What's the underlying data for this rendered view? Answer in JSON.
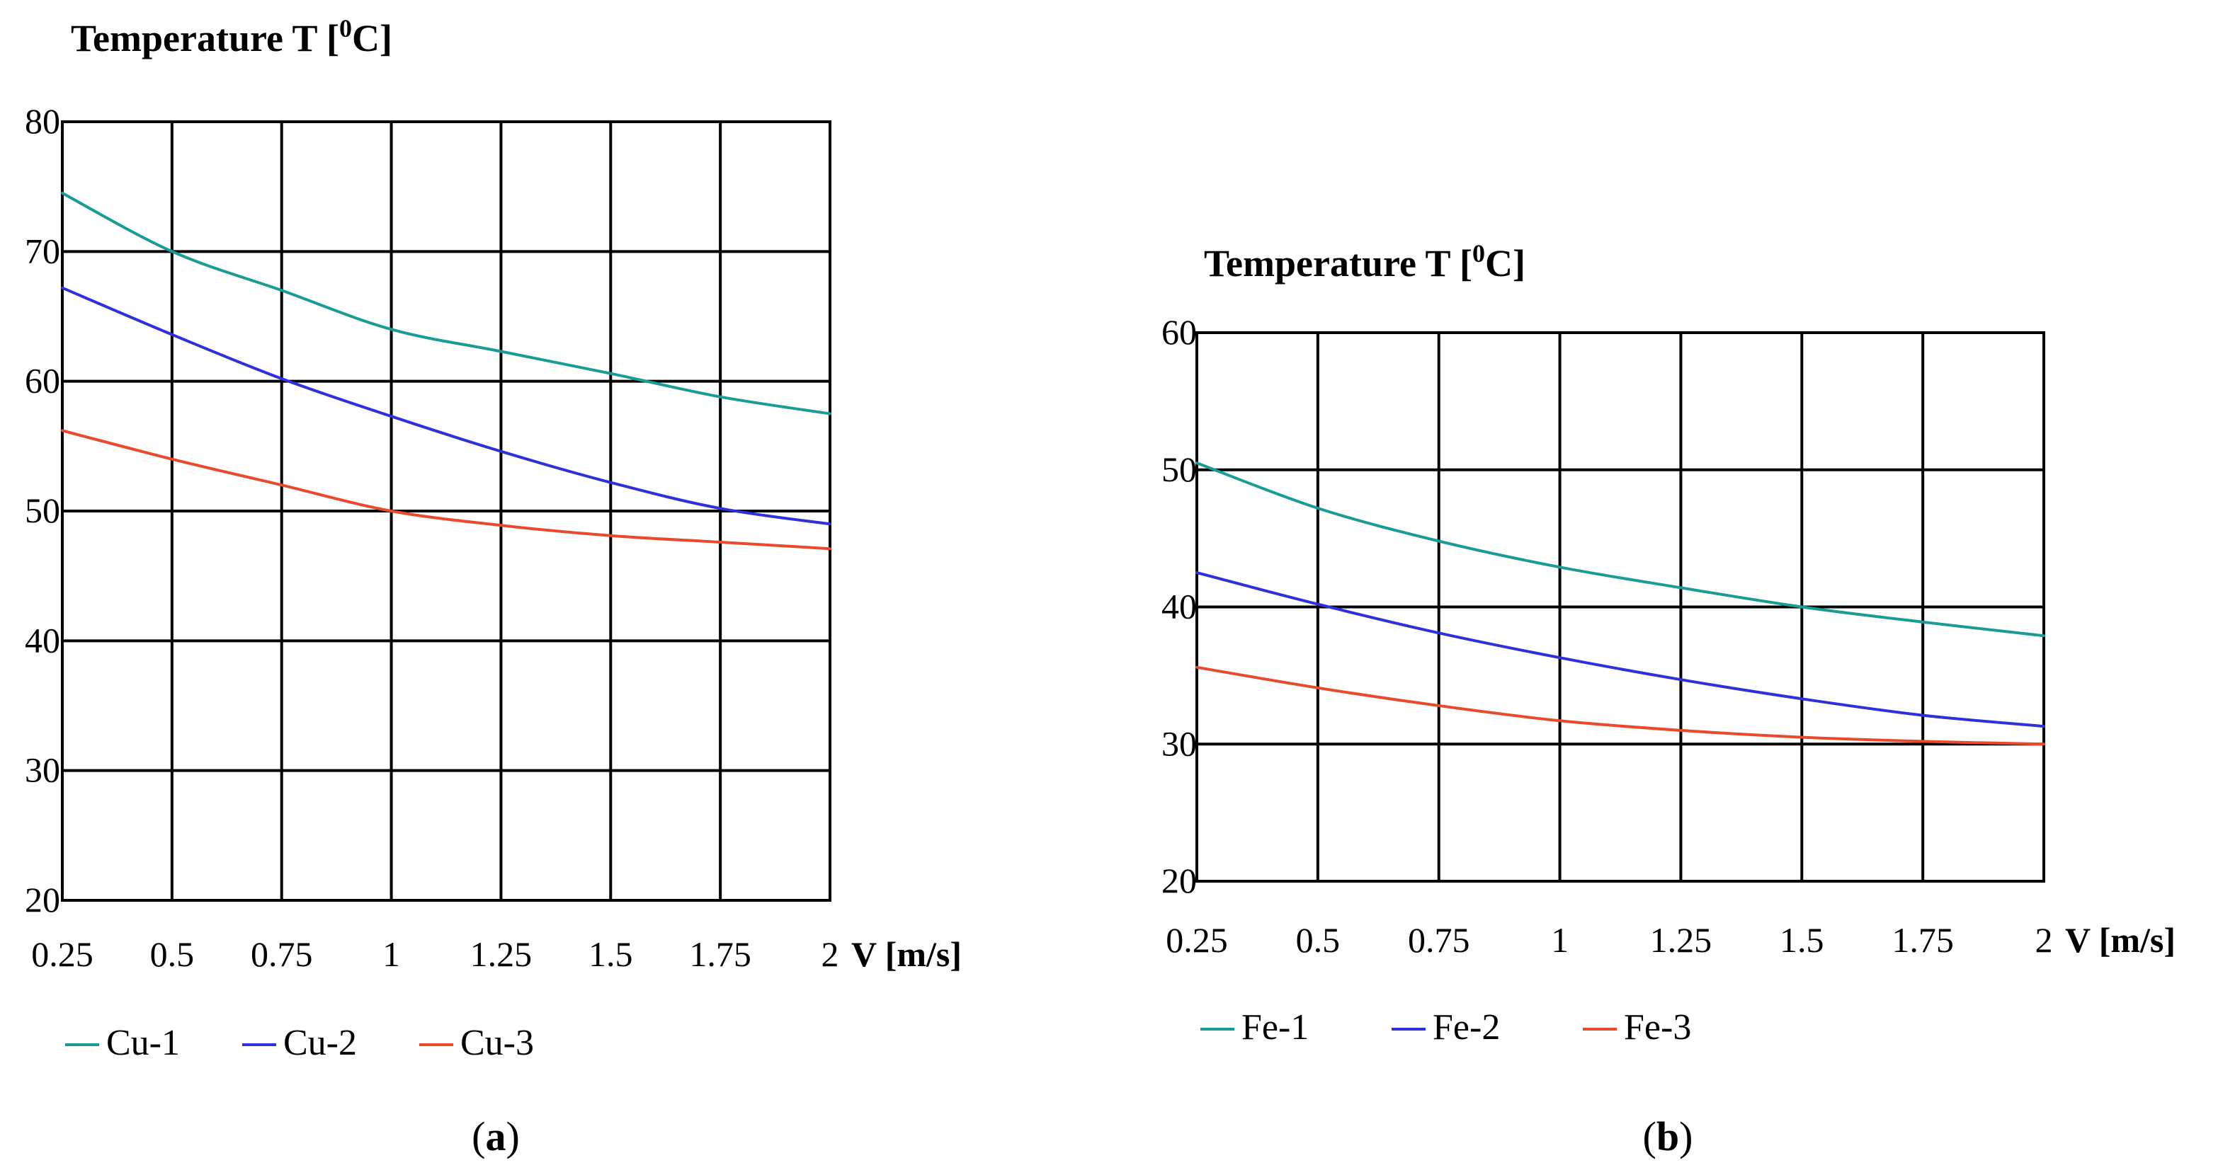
{
  "chart_data": [
    {
      "type": "line",
      "panel_label": "a",
      "ytitle": "Temperature T [",
      "ytitle_sup": "0",
      "ytitle_unit": "C]",
      "xlabel": "V [m/s]",
      "x_tick_values": [
        0.25,
        0.5,
        0.75,
        1,
        1.25,
        1.5,
        1.75,
        2
      ],
      "x_tick_labels": [
        "0.25",
        "0.5",
        "0.75",
        "1",
        "1.25",
        "1.5",
        "1.75",
        "2"
      ],
      "xlim": [
        0.25,
        2
      ],
      "x_grid": [
        0.5,
        0.75,
        1,
        1.25,
        1.5,
        1.75
      ],
      "y_ticks": [
        20,
        30,
        40,
        50,
        60,
        70,
        80
      ],
      "ylim": [
        20,
        80
      ],
      "grid": true,
      "legend_position": "bottom",
      "series": [
        {
          "name": "Cu-1",
          "color": "#1a9c96",
          "x": [
            0.25,
            0.5,
            0.75,
            1,
            1.25,
            1.5,
            1.75,
            2
          ],
          "values": [
            74.5,
            70.0,
            67.0,
            64.0,
            62.3,
            60.6,
            58.8,
            57.5
          ]
        },
        {
          "name": "Cu-2",
          "color": "#2f2fdb",
          "x": [
            0.25,
            0.5,
            0.75,
            1,
            1.25,
            1.5,
            1.75,
            2
          ],
          "values": [
            67.2,
            63.6,
            60.2,
            57.3,
            54.6,
            52.2,
            50.2,
            49.0
          ]
        },
        {
          "name": "Cu-3",
          "color": "#e84a2b",
          "x": [
            0.25,
            0.5,
            0.75,
            1,
            1.25,
            1.5,
            1.75,
            2
          ],
          "values": [
            56.2,
            54.0,
            52.0,
            50.0,
            48.9,
            48.1,
            47.6,
            47.1
          ]
        }
      ]
    },
    {
      "type": "line",
      "panel_label": "b",
      "ytitle": "Temperature T [",
      "ytitle_sup": "0",
      "ytitle_unit": "C]",
      "xlabel": "V [m/s]",
      "x_tick_values": [
        0.25,
        0.5,
        0.75,
        1,
        1.25,
        1.5,
        1.75,
        2
      ],
      "x_tick_labels": [
        "0.25",
        "0.5",
        "0.75",
        "1",
        "1.25",
        "1.5",
        "1.75",
        "2"
      ],
      "xlim": [
        0.25,
        2
      ],
      "x_grid": [
        0.5,
        0.75,
        1,
        1.25,
        1.5,
        1.75
      ],
      "y_ticks": [
        20,
        30,
        40,
        50,
        60
      ],
      "ylim": [
        20,
        60
      ],
      "grid": true,
      "legend_position": "bottom",
      "series": [
        {
          "name": "Fe-1",
          "color": "#1a9c96",
          "x": [
            0.25,
            0.5,
            0.75,
            1,
            1.25,
            1.5,
            1.75,
            2
          ],
          "values": [
            50.5,
            47.2,
            44.8,
            42.9,
            41.4,
            40.0,
            38.9,
            37.9
          ]
        },
        {
          "name": "Fe-2",
          "color": "#2f2fdb",
          "x": [
            0.25,
            0.5,
            0.75,
            1,
            1.25,
            1.5,
            1.75,
            2
          ],
          "values": [
            42.5,
            40.2,
            38.1,
            36.3,
            34.7,
            33.3,
            32.1,
            31.3
          ]
        },
        {
          "name": "Fe-3",
          "color": "#e84a2b",
          "x": [
            0.25,
            0.5,
            0.75,
            1,
            1.25,
            1.5,
            1.75,
            2
          ],
          "values": [
            35.6,
            34.1,
            32.8,
            31.7,
            31.0,
            30.5,
            30.2,
            30.0
          ]
        }
      ]
    }
  ]
}
